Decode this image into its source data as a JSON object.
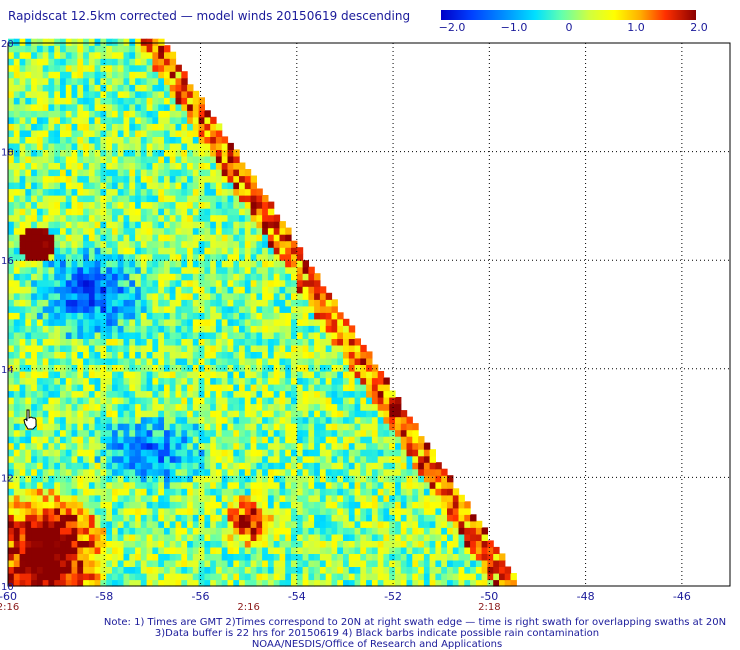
{
  "title": "Rapidscat 12.5km corrected — model winds 20150619 descending",
  "colorbar": {
    "labels": [
      "−2.0",
      "−1.0",
      "0",
      "1.0",
      "2.0"
    ],
    "range": [
      -2.0,
      2.0
    ],
    "colors": [
      "#0000c8",
      "#0060ff",
      "#00c8ff",
      "#40ffc0",
      "#c8ff40",
      "#ffff00",
      "#ffb000",
      "#ff4000",
      "#8b0000"
    ]
  },
  "map": {
    "lon_range": [
      -60,
      -45
    ],
    "lat_range": [
      10,
      20
    ],
    "lon_ticks": [
      "-60",
      "-58",
      "-56",
      "-54",
      "-52",
      "-50",
      "-48",
      "-46"
    ],
    "lat_ticks": [
      "20",
      "18",
      "16",
      "14",
      "12",
      "10"
    ],
    "time_labels": [
      {
        "lon": -60,
        "text": "2:16"
      },
      {
        "lon": -55,
        "text": "2:16"
      },
      {
        "lon": -50,
        "text": "2:18"
      }
    ],
    "swath_edge": [
      [
        -56.8,
        20
      ],
      [
        -49.4,
        10
      ]
    ],
    "grid": "dotted",
    "cursor_icon": "hand-pointer-icon"
  },
  "notes": {
    "line1": "Note: 1) Times are GMT 2)Times correspond to 20N at right swath edge — time is right swath for overlapping swaths at 20N",
    "line2": "3)Data buffer is 22 hrs for 20150619 4) Black barbs indicate possible rain contamination",
    "line3": "NOAA/NESDIS/Office of Research and Applications"
  }
}
